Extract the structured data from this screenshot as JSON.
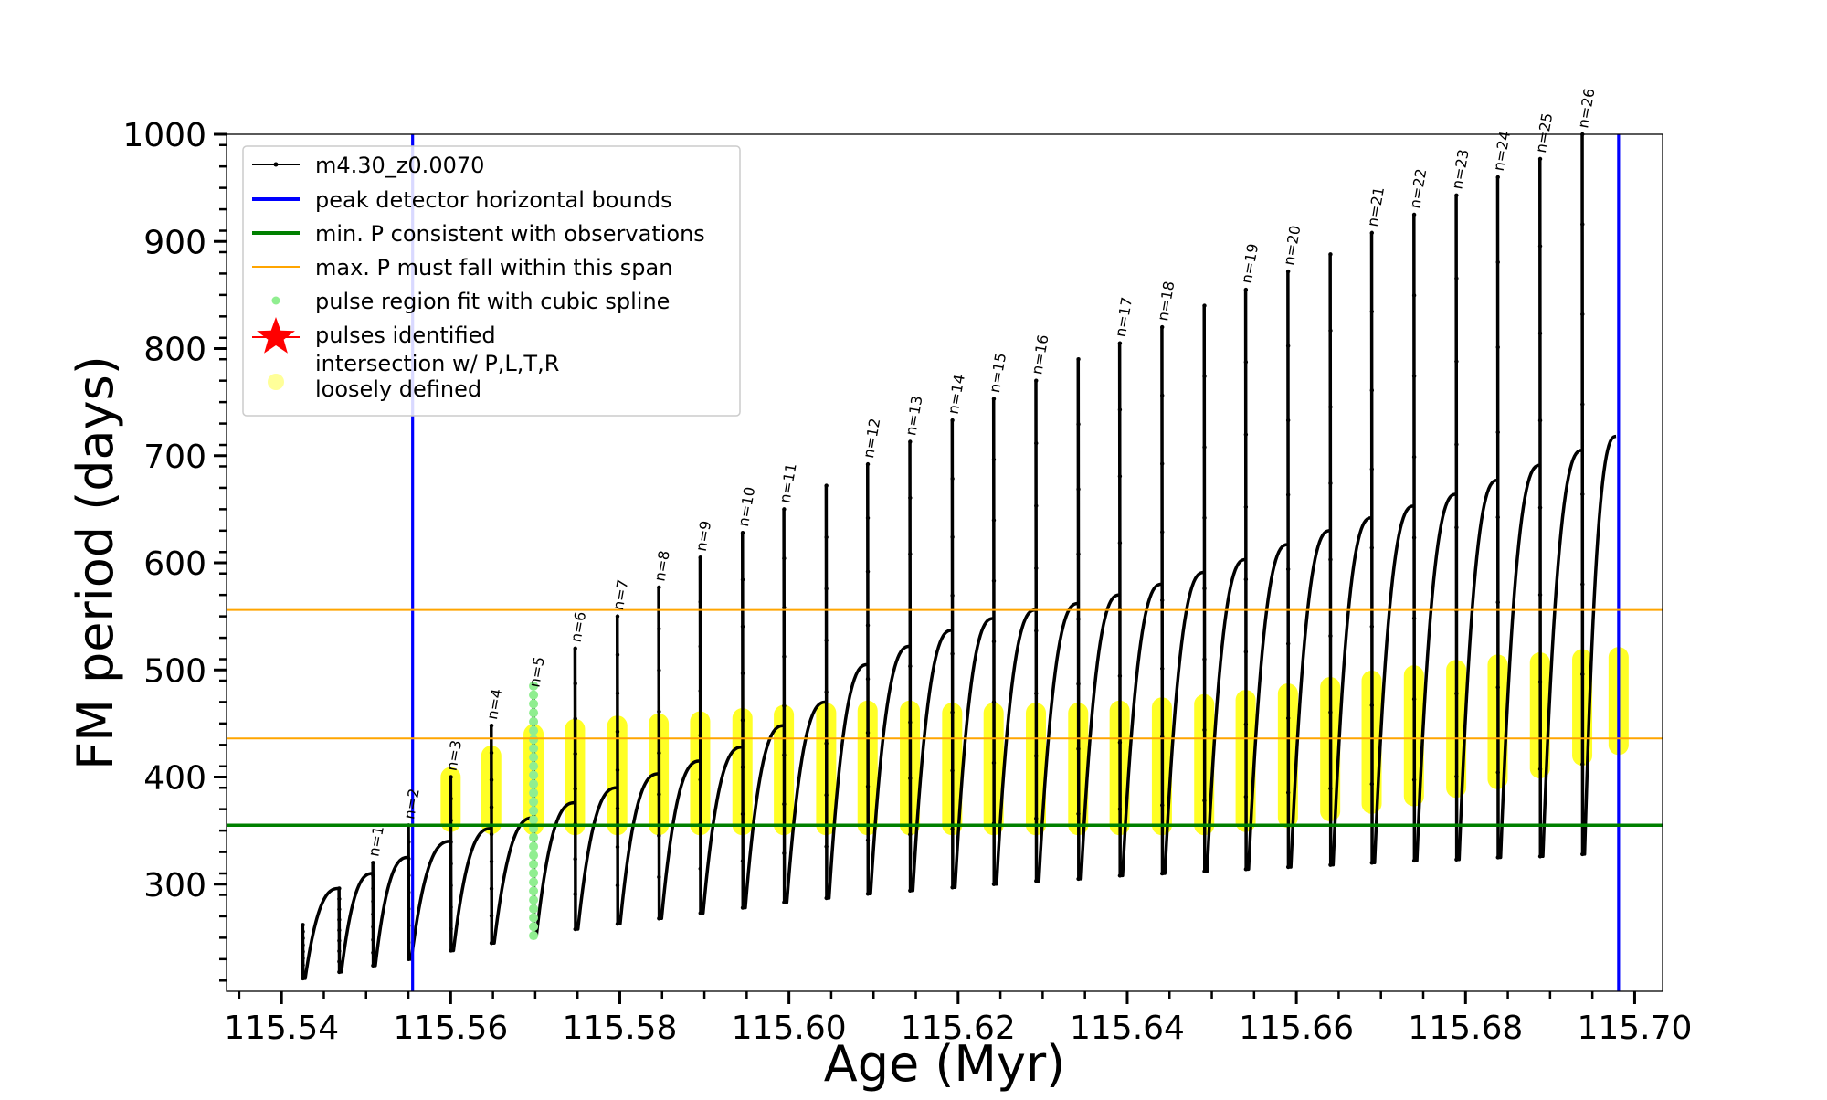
{
  "chart_data": {
    "type": "line",
    "title": "",
    "xlabel": "Age (Myr)",
    "ylabel": "FM period (days)",
    "xlim": [
      115.5335,
      115.7033
    ],
    "ylim": [
      200,
      1000
    ],
    "xticks": [
      115.54,
      115.56,
      115.58,
      115.6,
      115.62,
      115.64,
      115.66,
      115.68,
      115.7
    ],
    "xtick_labels": [
      "115.54",
      "115.56",
      "115.58",
      "115.60",
      "115.62",
      "115.64",
      "115.66",
      "115.68",
      "115.70"
    ],
    "yticks": [
      300,
      400,
      500,
      600,
      700,
      800,
      900,
      1000
    ],
    "ytick_labels": [
      "300",
      "400",
      "500",
      "600",
      "700",
      "800",
      "900",
      "1000"
    ],
    "grid": false,
    "legend_position": "top-left",
    "legend": [
      {
        "label": "m4.30_z0.0070",
        "kind": "line-marker",
        "color": "#000000"
      },
      {
        "label": "peak detector horizontal bounds",
        "kind": "line",
        "color": "#0000ff"
      },
      {
        "label": "min. P consistent with observations",
        "kind": "line",
        "color": "#008000"
      },
      {
        "label": "max. P must fall within this span",
        "kind": "line",
        "color": "#ffa500"
      },
      {
        "label": "pulse region fit with cubic spline",
        "kind": "dot",
        "color": "#90ee90"
      },
      {
        "label": "pulses identified",
        "kind": "star",
        "color": "#ff0000"
      },
      {
        "label": "intersection w/ P,L,T,R\nloosely defined",
        "kind": "dot",
        "color": "#ffff99"
      }
    ],
    "reference_lines": {
      "vertical_blue_x": [
        115.5555,
        115.6981
      ],
      "min_period_green_y": 355,
      "max_period_orange_y": [
        436,
        556
      ]
    },
    "series": [
      {
        "name": "m4.30_z0.0070",
        "color": "#000000",
        "pulses": [
          {
            "n": "",
            "x_start": 115.5425,
            "peak": 262,
            "trough": 212,
            "x_end": 115.5468,
            "end": 296
          },
          {
            "n": "",
            "x_start": 115.5468,
            "peak": 296,
            "trough": 218,
            "x_end": 115.5508,
            "end": 310
          },
          {
            "n": "n=1",
            "x_start": 115.5508,
            "peak": 320,
            "trough": 224,
            "x_end": 115.555,
            "end": 325
          },
          {
            "n": "n=2",
            "x_start": 115.555,
            "peak": 355,
            "trough": 230,
            "x_end": 115.56,
            "end": 340
          },
          {
            "n": "n=3",
            "x_start": 115.56,
            "peak": 400,
            "trough": 238,
            "x_end": 115.5648,
            "end": 352
          },
          {
            "n": "n=4",
            "x_start": 115.5648,
            "peak": 448,
            "trough": 245,
            "x_end": 115.5698,
            "end": 362
          },
          {
            "n": "n=5",
            "x_start": 115.5698,
            "peak": 478,
            "trough": 252,
            "x_end": 115.5747,
            "end": 376
          },
          {
            "n": "n=6",
            "x_start": 115.5747,
            "peak": 520,
            "trough": 258,
            "x_end": 115.5797,
            "end": 390
          },
          {
            "n": "n=7",
            "x_start": 115.5797,
            "peak": 550,
            "trough": 263,
            "x_end": 115.5846,
            "end": 403
          },
          {
            "n": "n=8",
            "x_start": 115.5846,
            "peak": 577,
            "trough": 268,
            "x_end": 115.5895,
            "end": 415
          },
          {
            "n": "n=9",
            "x_start": 115.5895,
            "peak": 605,
            "trough": 273,
            "x_end": 115.5945,
            "end": 428
          },
          {
            "n": "n=10",
            "x_start": 115.5945,
            "peak": 628,
            "trough": 278,
            "x_end": 115.5994,
            "end": 448
          },
          {
            "n": "n=11",
            "x_start": 115.5994,
            "peak": 650,
            "trough": 283,
            "x_end": 115.6044,
            "end": 470
          },
          {
            "n": "",
            "x_start": 115.6044,
            "peak": 672,
            "trough": 287,
            "x_end": 115.6093,
            "end": 505
          },
          {
            "n": "n=12",
            "x_start": 115.6093,
            "peak": 692,
            "trough": 291,
            "x_end": 115.6143,
            "end": 522
          },
          {
            "n": "n=13",
            "x_start": 115.6143,
            "peak": 713,
            "trough": 294,
            "x_end": 115.6193,
            "end": 537
          },
          {
            "n": "n=14",
            "x_start": 115.6193,
            "peak": 733,
            "trough": 297,
            "x_end": 115.6242,
            "end": 548
          },
          {
            "n": "n=15",
            "x_start": 115.6242,
            "peak": 753,
            "trough": 300,
            "x_end": 115.6292,
            "end": 556
          },
          {
            "n": "n=16",
            "x_start": 115.6292,
            "peak": 770,
            "trough": 303,
            "x_end": 115.6342,
            "end": 562
          },
          {
            "n": "",
            "x_start": 115.6342,
            "peak": 790,
            "trough": 305,
            "x_end": 115.6391,
            "end": 570
          },
          {
            "n": "n=17",
            "x_start": 115.6391,
            "peak": 805,
            "trough": 308,
            "x_end": 115.6441,
            "end": 580
          },
          {
            "n": "n=18",
            "x_start": 115.6441,
            "peak": 820,
            "trough": 310,
            "x_end": 115.6491,
            "end": 591
          },
          {
            "n": "",
            "x_start": 115.6491,
            "peak": 840,
            "trough": 312,
            "x_end": 115.654,
            "end": 603
          },
          {
            "n": "n=19",
            "x_start": 115.654,
            "peak": 855,
            "trough": 314,
            "x_end": 115.659,
            "end": 617
          },
          {
            "n": "n=20",
            "x_start": 115.659,
            "peak": 872,
            "trough": 316,
            "x_end": 115.664,
            "end": 630
          },
          {
            "n": "",
            "x_start": 115.664,
            "peak": 888,
            "trough": 318,
            "x_end": 115.6689,
            "end": 642
          },
          {
            "n": "n=21",
            "x_start": 115.6689,
            "peak": 908,
            "trough": 320,
            "x_end": 115.6739,
            "end": 653
          },
          {
            "n": "n=22",
            "x_start": 115.6739,
            "peak": 925,
            "trough": 322,
            "x_end": 115.6789,
            "end": 664
          },
          {
            "n": "n=23",
            "x_start": 115.6789,
            "peak": 943,
            "trough": 323,
            "x_end": 115.6838,
            "end": 677
          },
          {
            "n": "n=24",
            "x_start": 115.6838,
            "peak": 960,
            "trough": 325,
            "x_end": 115.6888,
            "end": 691
          },
          {
            "n": "n=25",
            "x_start": 115.6888,
            "peak": 977,
            "trough": 326,
            "x_end": 115.6938,
            "end": 705
          },
          {
            "n": "n=26",
            "x_start": 115.6938,
            "peak": 1000,
            "trough": 328,
            "x_end": 115.6978,
            "end": 718
          }
        ]
      },
      {
        "name": "pulse region fit with cubic spline",
        "color": "#90ee90",
        "x": [
          115.5698,
          115.5698
        ],
        "y": [
          252,
          485
        ]
      },
      {
        "name": "intersection w/ P,L,T,R loosely defined",
        "color": "#ffff00",
        "x": [
          115.56,
          115.5648,
          115.5698,
          115.5747,
          115.5797,
          115.5846,
          115.5895,
          115.5945,
          115.5994,
          115.6044,
          115.6093,
          115.6143,
          115.6193,
          115.6242,
          115.6292,
          115.6342,
          115.6391,
          115.6441,
          115.6491,
          115.654,
          115.659,
          115.664,
          115.6689,
          115.6739,
          115.6789,
          115.6838,
          115.6888,
          115.6938,
          115.6981
        ],
        "y_low": [
          358,
          356,
          355,
          355,
          355,
          355,
          355,
          355,
          355,
          355,
          355,
          355,
          355,
          355,
          355,
          355,
          355,
          355,
          355,
          358,
          362,
          368,
          375,
          382,
          390,
          398,
          408,
          420,
          430
        ],
        "y_high": [
          400,
          420,
          440,
          445,
          448,
          450,
          452,
          455,
          458,
          460,
          462,
          462,
          460,
          460,
          460,
          460,
          462,
          465,
          468,
          472,
          478,
          484,
          490,
          495,
          500,
          505,
          507,
          510,
          512
        ]
      }
    ]
  }
}
